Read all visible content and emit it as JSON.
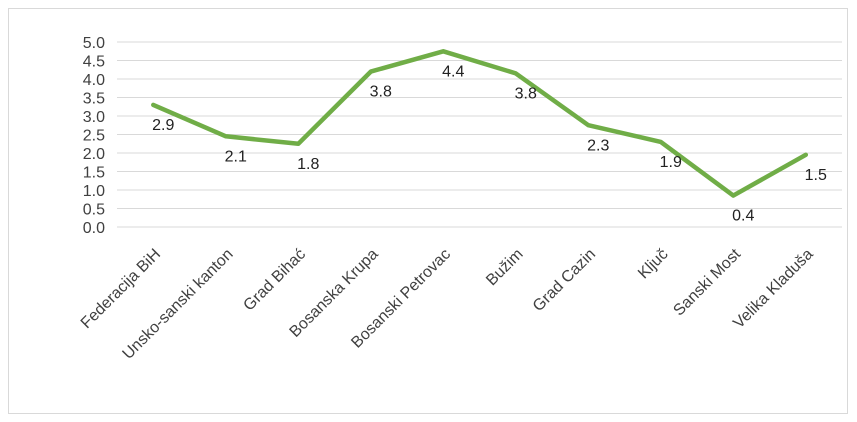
{
  "chart_data": {
    "type": "line",
    "title": "",
    "xlabel": "",
    "ylabel": "",
    "categories": [
      "Federacija BiH",
      "Unsko-sanski kanton",
      "Grad  Bihać",
      "Bosanska Krupa",
      "Bosanski Petrovac",
      "Bužim",
      "Grad Cazin",
      "Ključ",
      "Sanski Most",
      "Velika Kladuša"
    ],
    "values": [
      3.3,
      2.45,
      2.25,
      4.2,
      4.75,
      4.15,
      2.75,
      2.3,
      0.85,
      1.95
    ],
    "data_labels": [
      "2.9",
      "2.1",
      "1.8",
      "3.8",
      "4.4",
      "3.8",
      "2.3",
      "1.9",
      "0.4",
      "1.5"
    ],
    "yticks": [
      "0.0",
      "0.5",
      "1.0",
      "1.5",
      "2.0",
      "2.5",
      "3.0",
      "3.5",
      "4.0",
      "4.5",
      "5.0"
    ],
    "ylim": [
      0,
      5
    ],
    "grid": true,
    "legend": "none",
    "line_color": "#70ad47",
    "grid_color": "#d9d9d9"
  }
}
